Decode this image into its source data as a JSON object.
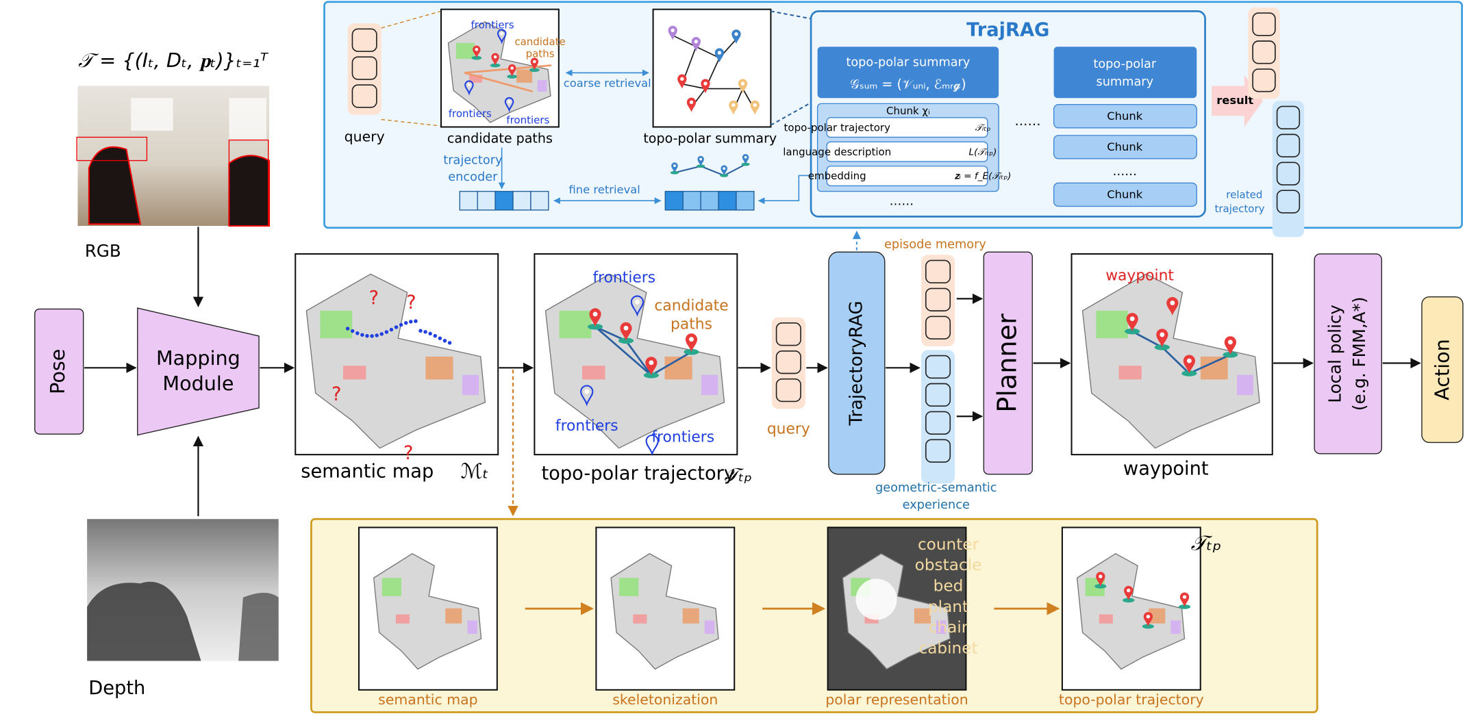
{
  "inputs": {
    "formula": "𝒯 = {(Iₜ, Dₜ, 𝐩ₜ)}ₜ₌₁ᵀ",
    "rgb": "RGB",
    "depth": "Depth",
    "pose": "Pose",
    "mapping": [
      "Mapping",
      "Module"
    ]
  },
  "main": {
    "semantic_map": "semantic map",
    "semantic_map_symbol": "ℳₜ",
    "topo_polar": "topo-polar trajectory",
    "topo_polar_symbol": "𝒯ₜₚ",
    "frontiers": [
      "frontiers",
      "frontiers",
      "frontiers"
    ],
    "candidate_paths": [
      "candidate",
      "paths"
    ],
    "query": "query",
    "trajectory_rag": "TrajectoryRAG",
    "episode_memory": "episode memory",
    "experience": [
      "geometric-semantic",
      "experience"
    ],
    "planner": "Planner",
    "waypoint_label": "waypoint",
    "waypoint": "waypoint",
    "local_policy": [
      "Local policy",
      "(e.g. FMM,A*)"
    ],
    "action": "Action"
  },
  "top_panel": {
    "query": "query",
    "frontiers": [
      "frontiers",
      "frontiers",
      "frontiers"
    ],
    "candidate_paths_label": [
      "candidate",
      "paths"
    ],
    "candidate_paths": "candidate paths",
    "coarse_retrieval": "coarse retrieval",
    "topo_polar_summary": "topo-polar summary",
    "trajectory_encoder": [
      "trajectory",
      "encoder"
    ],
    "fine_retrieval": "fine retrieval",
    "trajrag": {
      "title": "TrajRAG",
      "summary": "topo-polar summary",
      "summary_formula": "𝒢ₛᵤₘ = (𝒱ᵤₙᵢ, ℰₘᵣ𝓰)",
      "chunk_title": "Chunk χᵢ",
      "chunk_rows": [
        [
          "topo-polar trajectory",
          "𝒯ᵢₜₚ"
        ],
        [
          "language description",
          "L(𝒯ᵢₜₚ)"
        ],
        [
          "embedding",
          "𝐳ᵢ = f_E(𝒯ᵢₜₚ)"
        ]
      ],
      "chunk_more": "……",
      "more": "……",
      "summary2": [
        "topo-polar",
        "summary"
      ],
      "chunks": [
        "Chunk",
        "Chunk",
        "Chunk"
      ],
      "chunks_more": "……"
    },
    "result": "result",
    "related_trajectory": [
      "related",
      "trajectory"
    ]
  },
  "bottom_panel": {
    "steps": [
      "semantic map",
      "skeletonization",
      "polar representation",
      "topo-polar trajectory"
    ],
    "objects": [
      "counter",
      "obstacle",
      "bed",
      "plant",
      "chair",
      "cabinet"
    ],
    "symbol": "𝒯ₜₚ"
  }
}
